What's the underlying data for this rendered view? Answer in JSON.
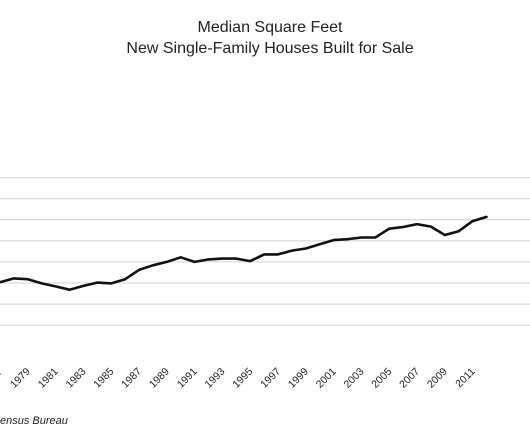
{
  "chart_data": {
    "type": "line",
    "title": "Median Square Feet",
    "subtitle": "New Single-Family Houses Built for Sale",
    "source": "ensus Bureau",
    "x_tick_labels": [
      "7",
      "1979",
      "1981",
      "1983",
      "1985",
      "1987",
      "1989",
      "1991",
      "1993",
      "1995",
      "1997",
      "1999",
      "2001",
      "2003",
      "2005",
      "2007",
      "2009",
      "2011"
    ],
    "grid": true,
    "series": [
      {
        "x": [
          1977,
          1978,
          1979,
          1980,
          1981,
          1982,
          1983,
          1984,
          1985,
          1986,
          1987,
          1988,
          1989,
          1990,
          1991,
          1992,
          1993,
          1994,
          1995,
          1996,
          1997,
          1998,
          1999,
          2000,
          2001,
          2002,
          2003,
          2004,
          2005,
          2006,
          2007,
          2008,
          2009,
          2010,
          2011,
          2012
        ],
        "values": [
          1610,
          1655,
          1645,
          1595,
          1560,
          1520,
          1565,
          1605,
          1595,
          1645,
          1755,
          1810,
          1850,
          1905,
          1850,
          1880,
          1890,
          1890,
          1860,
          1940,
          1940,
          1985,
          2010,
          2060,
          2110,
          2120,
          2140,
          2140,
          2245,
          2265,
          2300,
          2270,
          2170,
          2215,
          2335,
          2385
        ]
      }
    ]
  }
}
